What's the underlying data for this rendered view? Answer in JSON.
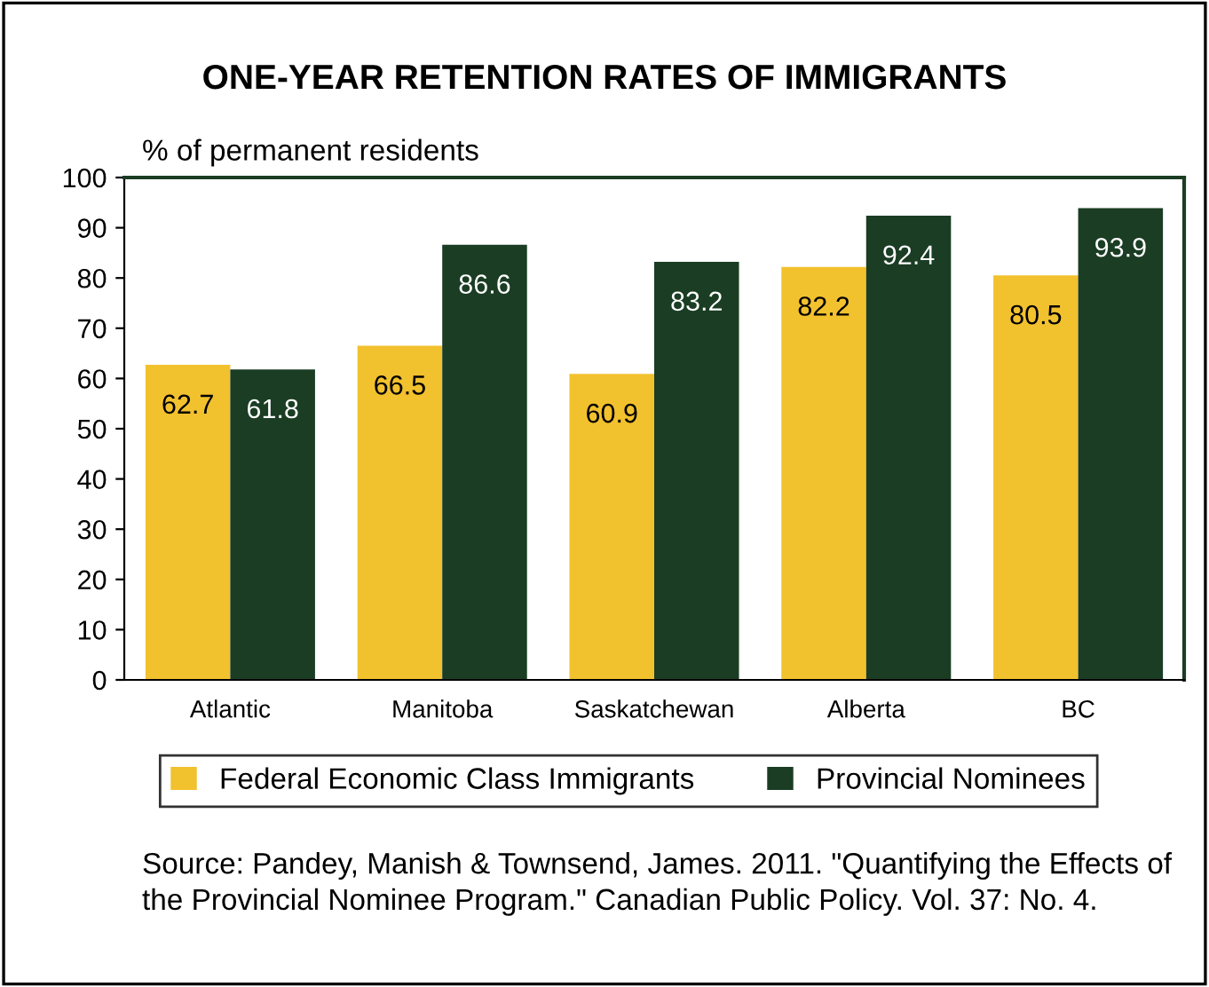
{
  "chart_data": {
    "type": "bar",
    "title": "ONE-YEAR RETENTION RATES OF IMMIGRANTS",
    "ylabel": "% of permanent residents",
    "categories": [
      "Atlantic",
      "Manitoba",
      "Saskatchewan",
      "Alberta",
      "BC"
    ],
    "series": [
      {
        "name": "Federal Economic Class Immigrants",
        "color": "#f2c12e",
        "values": [
          62.7,
          66.5,
          60.9,
          82.2,
          80.5
        ]
      },
      {
        "name": "Provincial Nominees",
        "color": "#1a3d24",
        "values": [
          61.8,
          86.6,
          83.2,
          92.4,
          93.9
        ]
      }
    ],
    "ylim": [
      0,
      100
    ],
    "yticks": [
      0,
      10,
      20,
      30,
      40,
      50,
      60,
      70,
      80,
      90,
      100
    ],
    "grid": false,
    "legend": "bottom",
    "data_labels": true,
    "annotations": [
      "Source: Pandey, Manish & Townsend, James. 2011. \"Quantifying the Effects of the Provincial Nominee Program.\" Canadian Public Policy. Vol. 37: No. 4."
    ]
  }
}
